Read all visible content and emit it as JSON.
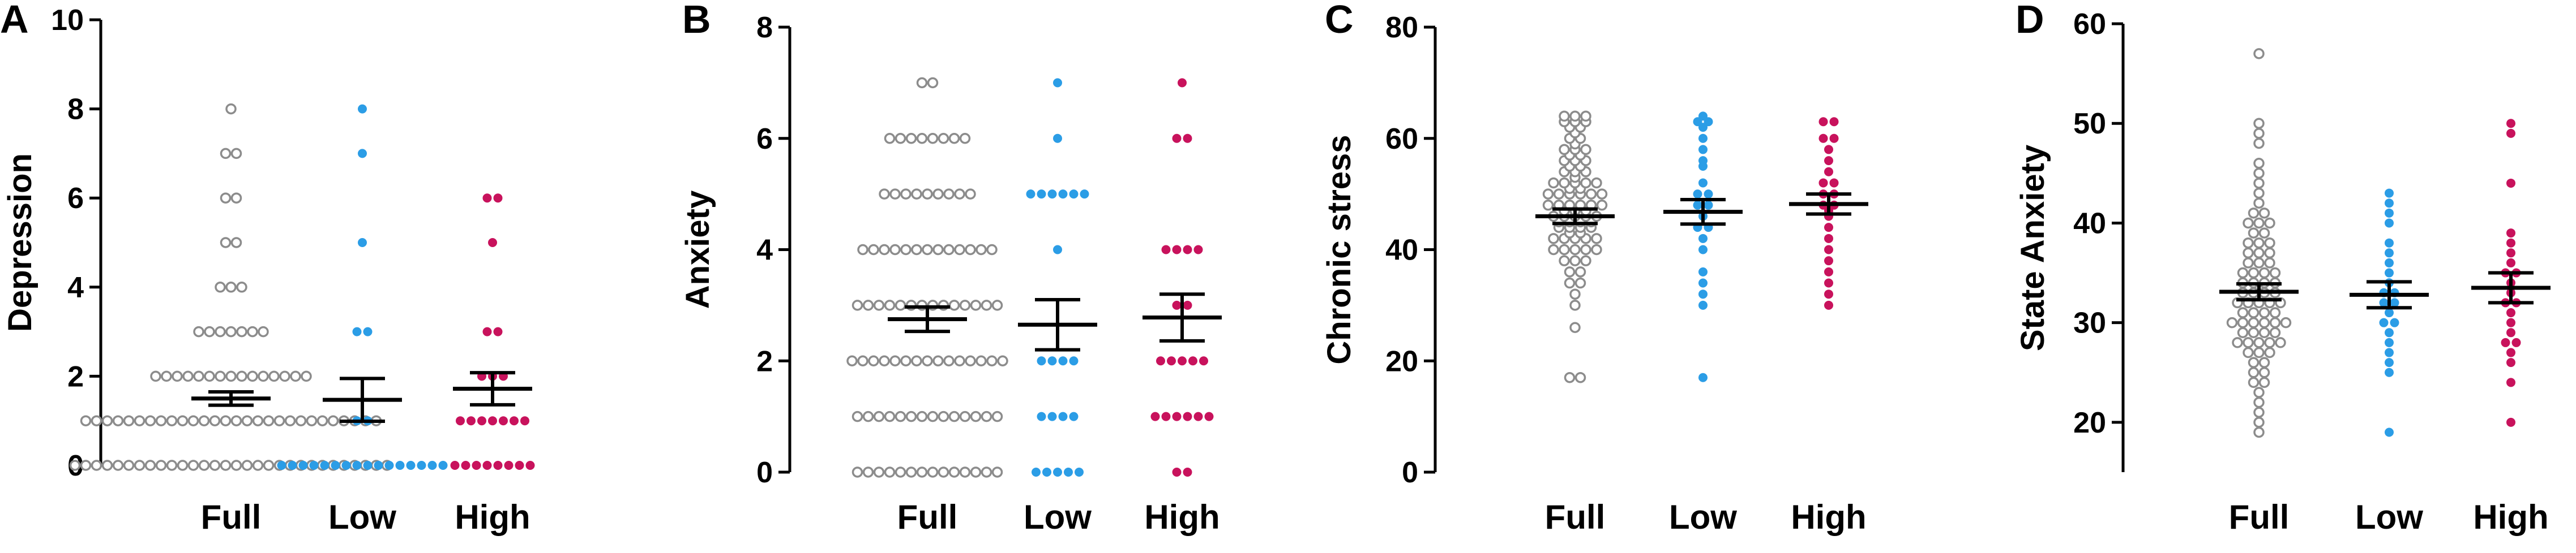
{
  "colors": {
    "full": "#8c8c8c",
    "low": "#2b9de6",
    "high": "#c8125c",
    "axis": "#000000"
  },
  "chart_data": [
    {
      "type": "scatter",
      "panel": "A",
      "title": "",
      "xlabel": "",
      "ylabel": "Depression",
      "categories": [
        "Full",
        "Low",
        "High"
      ],
      "ylim": [
        0,
        10
      ],
      "yticks": [
        0,
        2,
        4,
        6,
        8,
        10
      ],
      "series": [
        {
          "name": "Full",
          "marker": "open",
          "mean": 1.5,
          "sem": 0.15,
          "values": [
            0,
            0,
            0,
            0,
            0,
            0,
            0,
            0,
            0,
            0,
            0,
            0,
            0,
            0,
            0,
            0,
            0,
            0,
            0,
            0,
            0,
            0,
            0,
            0,
            0,
            0,
            0,
            0,
            0,
            0,
            1,
            1,
            1,
            1,
            1,
            1,
            1,
            1,
            1,
            1,
            1,
            1,
            1,
            1,
            1,
            1,
            1,
            1,
            1,
            1,
            1,
            1,
            1,
            1,
            1,
            1,
            1,
            1,
            2,
            2,
            2,
            2,
            2,
            2,
            2,
            2,
            2,
            2,
            2,
            2,
            2,
            2,
            2,
            3,
            3,
            3,
            3,
            3,
            3,
            3,
            4,
            4,
            4,
            5,
            5,
            6,
            6,
            7,
            7,
            8
          ]
        },
        {
          "name": "Low",
          "marker": "filled",
          "mean": 1.47,
          "sem": 0.48,
          "values": [
            0,
            0,
            0,
            0,
            0,
            0,
            0,
            0,
            0,
            0,
            0,
            0,
            0,
            0,
            0,
            0,
            1,
            1,
            3,
            3,
            5,
            7,
            8
          ]
        },
        {
          "name": "High",
          "marker": "filled",
          "mean": 1.72,
          "sem": 0.36,
          "values": [
            0,
            0,
            0,
            0,
            0,
            0,
            0,
            0,
            1,
            1,
            1,
            1,
            1,
            1,
            1,
            2,
            2,
            2,
            3,
            3,
            5,
            6,
            6
          ]
        }
      ]
    },
    {
      "type": "scatter",
      "panel": "B",
      "title": "",
      "xlabel": "",
      "ylabel": "Anxiety",
      "categories": [
        "Full",
        "Low",
        "High"
      ],
      "ylim": [
        0,
        8
      ],
      "yticks": [
        0,
        2,
        4,
        6,
        8
      ],
      "series": [
        {
          "name": "Full",
          "marker": "open",
          "mean": 2.75,
          "sem": 0.22,
          "values": [
            0,
            0,
            0,
            0,
            0,
            0,
            0,
            0,
            0,
            0,
            0,
            0,
            0,
            0,
            1,
            1,
            1,
            1,
            1,
            1,
            1,
            1,
            1,
            1,
            1,
            1,
            1,
            1,
            2,
            2,
            2,
            2,
            2,
            2,
            2,
            2,
            2,
            2,
            2,
            2,
            2,
            2,
            2,
            3,
            3,
            3,
            3,
            3,
            3,
            3,
            3,
            3,
            3,
            3,
            3,
            3,
            3,
            4,
            4,
            4,
            4,
            4,
            4,
            4,
            4,
            4,
            4,
            4,
            4,
            4,
            5,
            5,
            5,
            5,
            5,
            5,
            5,
            5,
            5,
            6,
            6,
            6,
            6,
            6,
            6,
            6,
            6,
            7,
            7
          ]
        },
        {
          "name": "Low",
          "marker": "filled",
          "mean": 2.65,
          "sem": 0.45,
          "values": [
            0,
            0,
            0,
            0,
            0,
            1,
            1,
            1,
            1,
            2,
            2,
            2,
            2,
            4,
            5,
            5,
            5,
            5,
            5,
            5,
            6,
            7
          ]
        },
        {
          "name": "High",
          "marker": "filled",
          "mean": 2.78,
          "sem": 0.42,
          "values": [
            0,
            0,
            1,
            1,
            1,
            1,
            1,
            1,
            2,
            2,
            2,
            2,
            2,
            3,
            3,
            4,
            4,
            4,
            4,
            6,
            6,
            7
          ]
        }
      ]
    },
    {
      "type": "scatter",
      "panel": "C",
      "title": "",
      "xlabel": "",
      "ylabel": "Chronic stress",
      "categories": [
        "Full",
        "Low",
        "High"
      ],
      "ylim": [
        0,
        80
      ],
      "yticks": [
        0,
        20,
        40,
        60,
        80
      ],
      "series": [
        {
          "name": "Full",
          "marker": "open",
          "mean": 46,
          "sem": 1.3,
          "values": [
            17,
            17,
            26,
            30,
            32,
            34,
            34,
            36,
            36,
            38,
            38,
            38,
            40,
            40,
            40,
            40,
            40,
            42,
            42,
            42,
            42,
            42,
            43,
            43,
            44,
            44,
            44,
            44,
            45,
            45,
            45,
            45,
            46,
            46,
            46,
            46,
            46,
            47,
            47,
            47,
            48,
            48,
            48,
            48,
            48,
            48,
            50,
            50,
            50,
            50,
            50,
            50,
            51,
            51,
            52,
            52,
            52,
            52,
            52,
            53,
            54,
            54,
            54,
            55,
            55,
            56,
            56,
            56,
            57,
            57,
            58,
            58,
            58,
            59,
            60,
            60,
            61,
            62,
            62,
            63,
            63,
            63,
            64,
            64,
            64
          ]
        },
        {
          "name": "Low",
          "marker": "filled",
          "mean": 46.8,
          "sem": 2.2,
          "values": [
            17,
            30,
            32,
            34,
            36,
            40,
            42,
            44,
            44,
            46,
            48,
            48,
            50,
            50,
            52,
            55,
            56,
            58,
            60,
            62,
            63,
            63,
            64
          ]
        },
        {
          "name": "High",
          "marker": "filled",
          "mean": 48.2,
          "sem": 1.8,
          "values": [
            30,
            32,
            34,
            36,
            38,
            40,
            42,
            44,
            46,
            47,
            48,
            48,
            50,
            50,
            52,
            52,
            54,
            56,
            58,
            60,
            60,
            63,
            63
          ]
        }
      ]
    },
    {
      "type": "scatter",
      "panel": "D",
      "title": "",
      "xlabel": "",
      "ylabel": "State Anxiety",
      "categories": [
        "Full",
        "Low",
        "High"
      ],
      "ylim": [
        15,
        60
      ],
      "yticks": [
        20,
        30,
        40,
        50,
        60
      ],
      "series": [
        {
          "name": "Full",
          "marker": "open",
          "mean": 33.1,
          "sem": 0.8,
          "values": [
            19,
            20,
            21,
            22,
            23,
            24,
            24,
            25,
            25,
            26,
            26,
            27,
            27,
            27,
            28,
            28,
            28,
            28,
            28,
            29,
            29,
            29,
            29,
            30,
            30,
            30,
            30,
            30,
            30,
            31,
            31,
            31,
            31,
            32,
            32,
            32,
            32,
            32,
            33,
            33,
            33,
            33,
            34,
            34,
            34,
            34,
            35,
            35,
            35,
            35,
            36,
            36,
            36,
            37,
            37,
            37,
            38,
            38,
            38,
            39,
            39,
            40,
            40,
            40,
            41,
            41,
            42,
            43,
            44,
            45,
            46,
            48,
            49,
            50,
            57
          ]
        },
        {
          "name": "Low",
          "marker": "filled",
          "mean": 32.8,
          "sem": 1.3,
          "values": [
            19,
            25,
            26,
            27,
            28,
            29,
            30,
            30,
            31,
            32,
            32,
            33,
            33,
            34,
            35,
            36,
            37,
            38,
            40,
            41,
            42,
            43
          ]
        },
        {
          "name": "High",
          "marker": "filled",
          "mean": 33.5,
          "sem": 1.5,
          "values": [
            20,
            24,
            26,
            27,
            28,
            28,
            29,
            30,
            31,
            32,
            32,
            33,
            34,
            35,
            35,
            36,
            37,
            38,
            39,
            44,
            49,
            50
          ]
        }
      ]
    }
  ]
}
